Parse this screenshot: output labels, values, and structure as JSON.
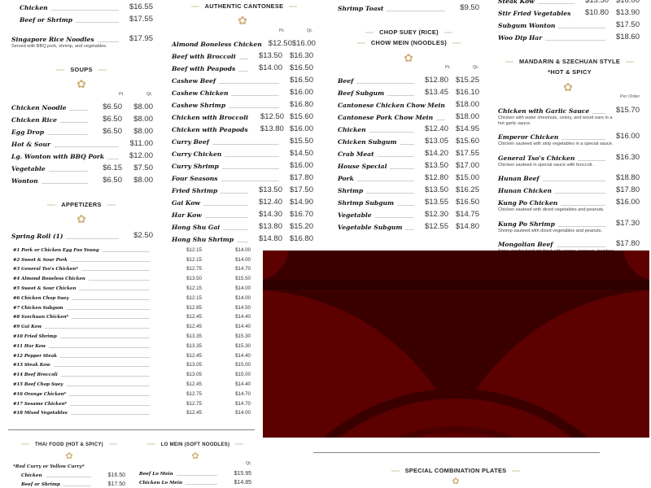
{
  "colors": {
    "accent_gold": "#d2b27a",
    "banner_red": "#5c0000",
    "banner_dark": "#3a0000"
  },
  "icons": {
    "section_ornament": "lotus-icon"
  },
  "col1": {
    "top_items": [
      {
        "name": "Chicken",
        "qt": "$16.55",
        "indent": true
      },
      {
        "name": "Beef or Shrimp",
        "qt": "$17.55",
        "indent": true
      }
    ],
    "singapore": [
      {
        "name": "Singapore Rice Noodles",
        "qt": "$17.95",
        "desc": "Served with BBQ pork, shrimp, and vegetables."
      }
    ],
    "soups": {
      "title": "SOUPS",
      "pt_label": "Pt.",
      "qt_label": "Qt.",
      "items": [
        {
          "name": "Chicken Noodle",
          "pt": "$6.50",
          "qt": "$8.00"
        },
        {
          "name": "Chicken Rice",
          "pt": "$6.50",
          "qt": "$8.00"
        },
        {
          "name": "Egg Drop",
          "pt": "$6.50",
          "qt": "$8.00"
        },
        {
          "name": "Hot & Sour",
          "qt": "$11.00"
        },
        {
          "name": "Lg. Wonton with BBQ Pork",
          "qt": "$12.00"
        },
        {
          "name": "Vegetable",
          "pt": "$6.15",
          "qt": "$7.50"
        },
        {
          "name": "Wonton",
          "pt": "$6.50",
          "qt": "$8.00"
        }
      ]
    },
    "appetizers": {
      "title": "APPETIZERS",
      "items": [
        {
          "name": "Spring Roll (1)",
          "qt": "$2.50"
        }
      ]
    }
  },
  "combinations": [
    {
      "name": "#1 Pork or Chicken Egg Foo Young",
      "pt": "$12.15",
      "qt": "$14.00"
    },
    {
      "name": "#2 Sweet & Sour Pork",
      "pt": "$12.15",
      "qt": "$14.00"
    },
    {
      "name": "#3 General Tso's Chicken*",
      "pt": "$12.75",
      "qt": "$14.70"
    },
    {
      "name": "#4 Almond Boneless Chicken",
      "pt": "$13.50",
      "qt": "$15.50"
    },
    {
      "name": "#5 Sweet & Sour Chicken",
      "pt": "$12.15",
      "qt": "$14.00"
    },
    {
      "name": "#6 Chicken Chop Suey",
      "pt": "$12.15",
      "qt": "$14.00"
    },
    {
      "name": "#7 Chicken Subgum",
      "pt": "$12.85",
      "qt": "$14.50"
    },
    {
      "name": "#8 Szechuan Chicken*",
      "pt": "$12.45",
      "qt": "$14.40"
    },
    {
      "name": "#9 Gai Kow",
      "pt": "$12.45",
      "qt": "$14.40"
    },
    {
      "name": "#10 Fried Shrimp",
      "pt": "$13.35",
      "qt": "$15.30"
    },
    {
      "name": "#11 Har Kow",
      "pt": "$13.35",
      "qt": "$15.30"
    },
    {
      "name": "#12 Pepper Steak",
      "pt": "$12.45",
      "qt": "$14.40"
    },
    {
      "name": "#13 Steak Kow",
      "pt": "$13.05",
      "qt": "$15.00"
    },
    {
      "name": "#14 Beef Broccoli",
      "pt": "$13.05",
      "qt": "$15.00"
    },
    {
      "name": "#15 Beef Chop Suey",
      "pt": "$12.45",
      "qt": "$14.40"
    },
    {
      "name": "#16 Orange Chicken*",
      "pt": "$12.75",
      "qt": "$14.70"
    },
    {
      "name": "#17 Sesame Chicken*",
      "pt": "$12.75",
      "qt": "$14.70"
    },
    {
      "name": "#18 Mixed Vegetables",
      "pt": "$12.45",
      "qt": "$14.00"
    }
  ],
  "cantonese": {
    "title": "AUTHENTIC CANTONESE",
    "pt_label": "Pt.",
    "qt_label": "Qt.",
    "items": [
      {
        "name": "Almond Boneless Chicken",
        "pt": "$12.50",
        "qt": "$16.00"
      },
      {
        "name": "Beef with Broccoli",
        "pt": "$13.50",
        "qt": "$16.30"
      },
      {
        "name": "Beef with Peapods",
        "pt": "$14.00",
        "qt": "$16.50"
      },
      {
        "name": "Cashew Beef",
        "qt": "$16.50"
      },
      {
        "name": "Cashew Chicken",
        "qt": "$16.00"
      },
      {
        "name": "Cashew Shrimp",
        "qt": "$16.80"
      },
      {
        "name": "Chicken with Broccoli",
        "pt": "$12.50",
        "qt": "$15.60"
      },
      {
        "name": "Chicken with Peapods",
        "pt": "$13.80",
        "qt": "$16.00"
      },
      {
        "name": "Curry Beef",
        "qt": "$15.50"
      },
      {
        "name": "Curry Chicken",
        "qt": "$14.50"
      },
      {
        "name": "Curry Shrimp",
        "qt": "$16.00"
      },
      {
        "name": "Four Seasons",
        "qt": "$17.80"
      },
      {
        "name": "Fried Shrimp",
        "pt": "$13.50",
        "qt": "$17.50"
      },
      {
        "name": "Gai Kow",
        "pt": "$12.40",
        "qt": "$14.90"
      },
      {
        "name": "Har Kow",
        "pt": "$14.30",
        "qt": "$16.70"
      },
      {
        "name": "Hong Shu Gai",
        "pt": "$13.80",
        "qt": "$15.20"
      },
      {
        "name": "Hong Shu Shrimp",
        "pt": "$14.80",
        "qt": "$16.80"
      }
    ]
  },
  "col3": {
    "top_items": [
      {
        "name": "Shrimp Toast",
        "qt": "$9.50"
      }
    ],
    "title1": "CHOP SUEY (RICE)",
    "title2": "CHOW MEIN (NOODLES)",
    "pt_label": "Pt.",
    "qt_label": "Qt.",
    "items": [
      {
        "name": "Beef",
        "pt": "$12.80",
        "qt": "$15.25"
      },
      {
        "name": "Beef Subgum",
        "pt": "$13.45",
        "qt": "$16.10"
      },
      {
        "name": "Cantonese Chicken Chow Mein",
        "qt": "$18.00"
      },
      {
        "name": "Cantonese Pork Chow Mein",
        "qt": "$18.00"
      },
      {
        "name": "Chicken",
        "pt": "$12.40",
        "qt": "$14.95"
      },
      {
        "name": "Chicken Subgum",
        "pt": "$13.05",
        "qt": "$15.60"
      },
      {
        "name": "Crab Meat",
        "pt": "$14.20",
        "qt": "$17.55"
      },
      {
        "name": "House Special",
        "pt": "$13.50",
        "qt": "$17.00"
      },
      {
        "name": "Pork",
        "pt": "$12.80",
        "qt": "$15.00"
      },
      {
        "name": "Shrimp",
        "pt": "$13.50",
        "qt": "$16.25"
      },
      {
        "name": "Shrimp Subgum",
        "pt": "$13.55",
        "qt": "$16.50"
      },
      {
        "name": "Vegetable",
        "pt": "$12.30",
        "qt": "$14.75"
      },
      {
        "name": "Vegetable Subgum",
        "pt": "$12.55",
        "qt": "$14.80"
      }
    ]
  },
  "col4": {
    "top_items": [
      {
        "name": "Steak Kow",
        "pt": "$13.50",
        "qt": "$16.00"
      },
      {
        "name": "Stir Fried Vegetables",
        "pt": "$10.80",
        "qt": "$13.90"
      },
      {
        "name": "Subgum Wonton",
        "qt": "$17.50"
      },
      {
        "name": "Woo Dip Har",
        "qt": "$18.60"
      }
    ],
    "title1": "MANDARIN & SZECHUAN STYLE",
    "title2": "*HOT & SPICY",
    "per_order_label": "Per Order",
    "items": [
      {
        "name": "Chicken with Garlic Sauce",
        "qt": "$15.70",
        "desc": "Chicken with water chestnuts, celery, and wood ears in a hot garlic sauce."
      },
      {
        "name": "Emperor Chicken",
        "qt": "$16.00",
        "desc": "Chicken sauteed with strip vegetables in a special sauce."
      },
      {
        "name": "General Tso's Chicken",
        "qt": "$16.30",
        "desc": "Chicken sauteed in special sauce with broccoli."
      },
      {
        "name": "Hunan Beef",
        "qt": "$18.80"
      },
      {
        "name": "Hunan Chicken",
        "qt": "$17.80"
      },
      {
        "name": "Kung Po Chicken",
        "qt": "$16.00",
        "desc": "Chicken sauteed with diced vegetables and peanuts."
      },
      {
        "name": "Kung Po Shrimp",
        "qt": "$17.30",
        "desc": "Shrimp sauteed with diced vegetables and peanuts."
      },
      {
        "name": "Mongolian Beef",
        "qt": "$17.80",
        "desc": "Spicy, tender beef stir fried with onions, peppers, bamboo shoots, water"
      }
    ]
  },
  "thai": {
    "title": "THAI FOOD (HOT & SPICY)",
    "subtitle": "*Red Curry or Yellow Curry*",
    "items": [
      {
        "name": "Chicken",
        "qt": "$16.50",
        "indent": true
      },
      {
        "name": "Beef or Shrimp",
        "qt": "$17.50",
        "indent": true
      }
    ]
  },
  "lomein": {
    "title": "LO MEIN (SOFT NOODLES)",
    "qt_label": "Qt.",
    "items": [
      {
        "name": "Beef Lo Mein",
        "qt": "$15.95"
      },
      {
        "name": "Chicken Lo Mein",
        "qt": "$14.85"
      }
    ]
  },
  "special": {
    "title": "SPECIAL COMBINATION PLATES"
  }
}
